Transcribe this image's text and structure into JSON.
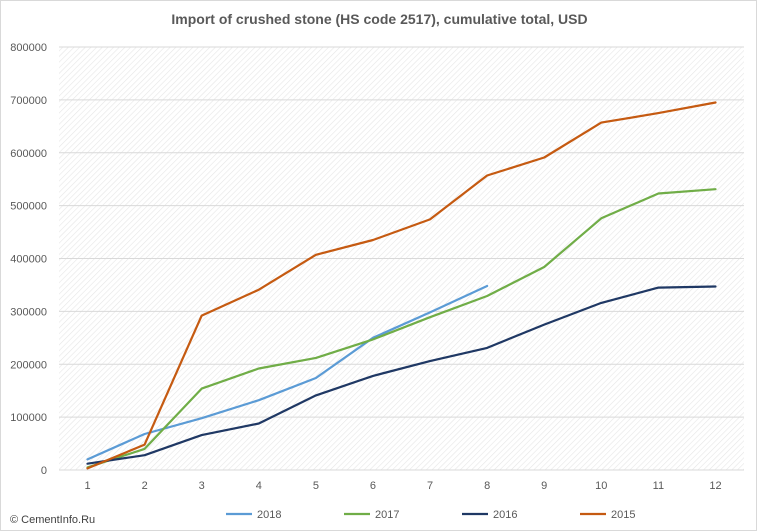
{
  "chart_data": {
    "type": "line",
    "title": "Import of crushed stone (HS code 2517), cumulative total, USD",
    "xlabel": "",
    "ylabel": "",
    "categories": [
      1,
      2,
      3,
      4,
      5,
      6,
      7,
      8,
      9,
      10,
      11,
      12
    ],
    "ylim": [
      0,
      800000
    ],
    "yticks": [
      0,
      100000,
      200000,
      300000,
      400000,
      500000,
      600000,
      700000,
      800000
    ],
    "grid": true,
    "legend_position": "bottom",
    "series": [
      {
        "name": "2018",
        "color": "#5b9bd5",
        "values": [
          20000,
          68000,
          98000,
          132000,
          174000,
          250000,
          298000,
          348000,
          null,
          null,
          null,
          null
        ]
      },
      {
        "name": "2017",
        "color": "#70ad47",
        "values": [
          5000,
          40000,
          154000,
          192000,
          212000,
          247000,
          289000,
          329000,
          384000,
          476000,
          523000,
          531000
        ]
      },
      {
        "name": "2016",
        "color": "#1f3864",
        "values": [
          12000,
          28000,
          66000,
          88000,
          141000,
          178000,
          206000,
          231000,
          275000,
          316000,
          345000,
          347000
        ]
      },
      {
        "name": "2015",
        "color": "#c55a11",
        "values": [
          3000,
          48000,
          292000,
          341000,
          407000,
          435000,
          474000,
          557000,
          591000,
          657000,
          675000,
          695000
        ]
      }
    ]
  },
  "watermark": "© CementInfo.Ru"
}
